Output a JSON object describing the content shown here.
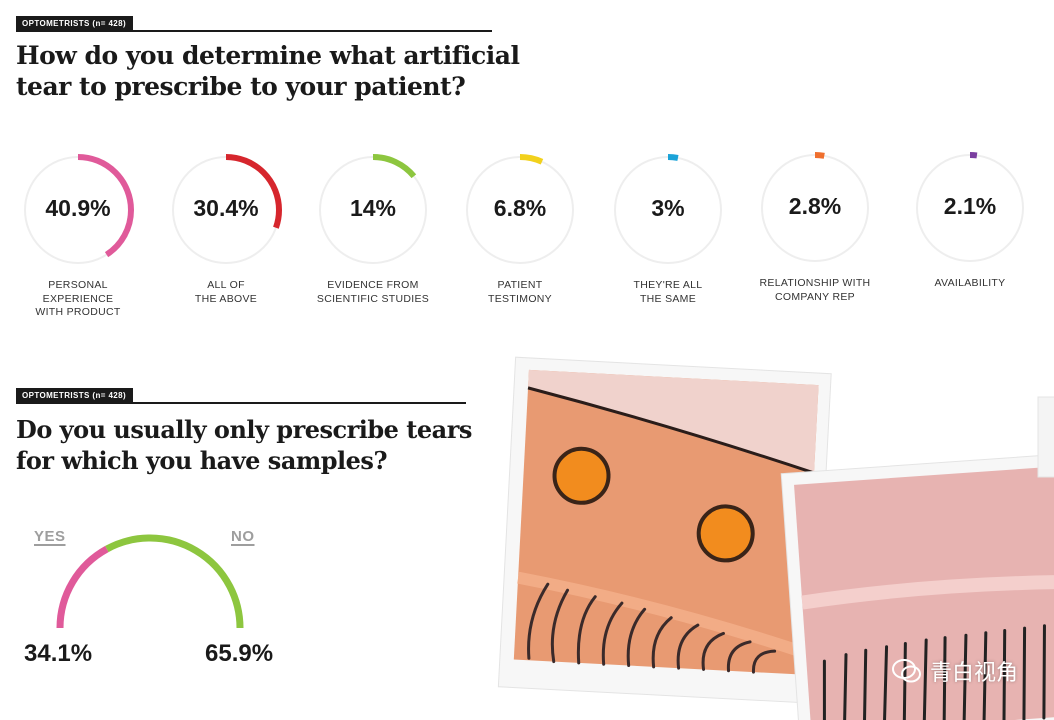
{
  "section1": {
    "tag_group": "OPTOMETRISTS",
    "tag_n": "(n= 428)",
    "question": "How do you determine what artificial tear to prescribe to your patient?"
  },
  "section2": {
    "tag_group": "OPTOMETRISTS",
    "tag_n": "(n= 428)",
    "question": "Do you usually only prescribe tears for which you have samples?"
  },
  "chart_data": [
    {
      "type": "pie",
      "title": "How do you determine what artificial tear to prescribe to your patient?",
      "categories": [
        "PERSONAL EXPERIENCE WITH PRODUCT",
        "ALL OF THE ABOVE",
        "EVIDENCE FROM SCIENTIFIC STUDIES",
        "PATIENT TESTIMONY",
        "THEY'RE ALL THE SAME",
        "RELATIONSHIP WITH COMPANY REP",
        "AVAILABILITY"
      ],
      "values": [
        40.9,
        30.4,
        14,
        6.8,
        3,
        2.8,
        2.1
      ],
      "labels": [
        "40.9%",
        "30.4%",
        "14%",
        "6.8%",
        "3%",
        "2.8%",
        "2.1%"
      ],
      "caption_lines": [
        [
          "PERSONAL",
          "EXPERIENCE",
          "WITH PRODUCT"
        ],
        [
          "ALL OF",
          "THE ABOVE"
        ],
        [
          "EVIDENCE FROM",
          "SCIENTIFIC STUDIES"
        ],
        [
          "PATIENT",
          "TESTIMONY"
        ],
        [
          "THEY'RE ALL",
          "THE SAME"
        ],
        [
          "RELATIONSHIP WITH",
          "COMPANY REP"
        ],
        [
          "AVAILABILITY"
        ]
      ],
      "colors": [
        "#e05a9a",
        "#d6262d",
        "#8dc63f",
        "#f2d11c",
        "#1ba3d8",
        "#ef6f2e",
        "#7b3fa0"
      ],
      "track_color": "#eeeeee"
    },
    {
      "type": "pie",
      "title": "Do you usually only prescribe tears for which you have samples?",
      "categories": [
        "YES",
        "NO"
      ],
      "values": [
        34.1,
        65.9
      ],
      "labels": [
        "34.1%",
        "65.9%"
      ],
      "colors": [
        "#e05a9a",
        "#8dc63f"
      ]
    }
  ],
  "watermark": "青白视角"
}
